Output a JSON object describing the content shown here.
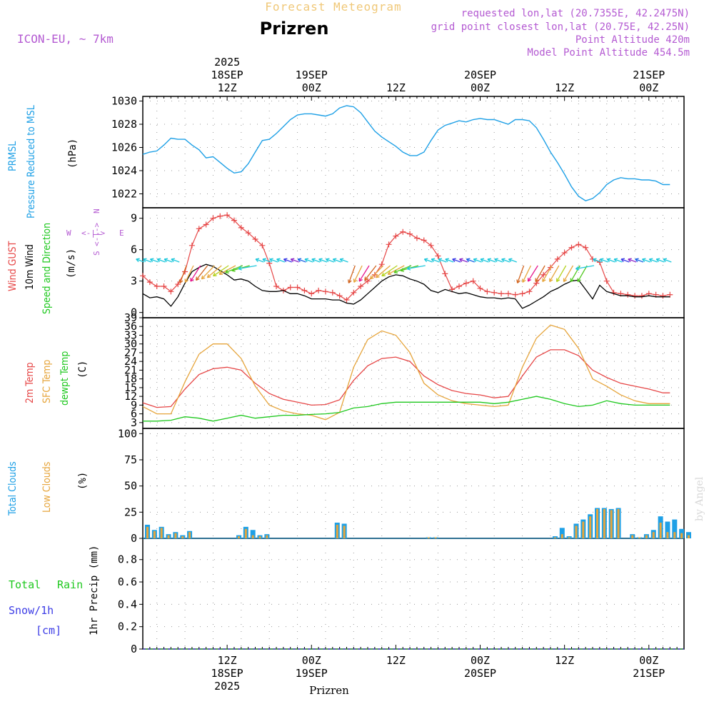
{
  "header": {
    "title": "Prizren",
    "subtitle": "Forecast Meteogram",
    "model": "ICON-EU, ~ 7km",
    "requested": "requested lon,lat (20.7355E, 42.2475N)",
    "grid_point": "grid point closest lon,lat (20.75E, 42.25N)",
    "point_altitude": "Point Altitude 420m",
    "model_altitude": "Model Point Altitude 454.5m",
    "footer_location": "Prizren",
    "watermark": "by Angel"
  },
  "colors": {
    "pressure": "#1ea0e6",
    "gust": "#e64646",
    "wind": "#000000",
    "temp2m": "#e64646",
    "sfc": "#e6a53c",
    "dewpt": "#1ec81e",
    "total_clouds": "#1ea0e6",
    "low_clouds": "#e6a53c",
    "rain": "#1ec81e",
    "snow": "#3c3ce6",
    "header_purple": "#b45ad2",
    "header_orange": "#f0c878"
  },
  "time_axis": {
    "top_ticks": [
      {
        "t": 12,
        "lines": [
          "2025",
          "18SEP",
          "12Z"
        ]
      },
      {
        "t": 24,
        "lines": [
          "19SEP",
          "00Z"
        ]
      },
      {
        "t": 36,
        "lines": [
          "12Z"
        ]
      },
      {
        "t": 48,
        "lines": [
          "20SEP",
          "00Z"
        ]
      },
      {
        "t": 60,
        "lines": [
          "12Z"
        ]
      },
      {
        "t": 72,
        "lines": [
          "21SEP",
          "00Z"
        ]
      }
    ],
    "bottom_ticks": [
      {
        "t": 12,
        "lines": [
          "12Z",
          "18SEP",
          "2025"
        ]
      },
      {
        "t": 24,
        "lines": [
          "00Z",
          "19SEP"
        ]
      },
      {
        "t": 36,
        "lines": [
          "12Z"
        ]
      },
      {
        "t": 48,
        "lines": [
          "00Z",
          "20SEP"
        ]
      },
      {
        "t": 60,
        "lines": [
          "12Z"
        ]
      },
      {
        "t": 72,
        "lines": [
          "00Z",
          "21SEP"
        ]
      }
    ]
  },
  "panel_labels": {
    "pressure": [
      "PRMSL",
      "Pressure Reduced to MSL",
      "(hPa)"
    ],
    "wind": [
      "Wind GUST",
      "10m Wind",
      "Speed and Direction",
      "(m/s)"
    ],
    "compass": {
      "n": "N",
      "s": "S",
      "w": "W",
      "e": "E"
    },
    "temp": [
      "2m Temp",
      "SFC Temp",
      "dewpt Temp",
      "(C)"
    ],
    "clouds": [
      "Total Clouds",
      "Low Clouds",
      "(%)"
    ],
    "precip": [
      "Total",
      "Rain",
      "Snow/1h",
      "[cm]",
      "1hr Precip (mm)"
    ]
  },
  "chart_data": [
    {
      "type": "line",
      "name": "pressure",
      "ylabel": "Pressure Reduced to MSL (hPa)",
      "ylim": [
        1020.8,
        1030.4
      ],
      "yticks": [
        1022,
        1024,
        1026,
        1028,
        1030
      ],
      "x": [
        0,
        1,
        2,
        3,
        4,
        5,
        6,
        7,
        8,
        9,
        10,
        11,
        12,
        13,
        14,
        15,
        16,
        17,
        18,
        19,
        20,
        21,
        22,
        23,
        24,
        25,
        26,
        27,
        28,
        29,
        30,
        31,
        32,
        33,
        34,
        35,
        36,
        37,
        38,
        39,
        40,
        41,
        42,
        43,
        44,
        45,
        46,
        47,
        48,
        49,
        50,
        51,
        52,
        53,
        54,
        55,
        56,
        57,
        58,
        59,
        60,
        61,
        62,
        63,
        64,
        65,
        66,
        67,
        68,
        69,
        70,
        71,
        72,
        73,
        74,
        75
      ],
      "values": [
        1025.4,
        1025.6,
        1025.7,
        1026.2,
        1026.8,
        1026.7,
        1026.7,
        1026.2,
        1025.8,
        1025.1,
        1025.2,
        1024.7,
        1024.2,
        1023.8,
        1023.9,
        1024.6,
        1025.6,
        1026.6,
        1026.7,
        1027.2,
        1027.8,
        1028.4,
        1028.8,
        1028.9,
        1028.9,
        1028.8,
        1028.7,
        1028.9,
        1029.4,
        1029.6,
        1029.5,
        1029.0,
        1028.2,
        1027.4,
        1026.9,
        1026.5,
        1026.1,
        1025.6,
        1025.3,
        1025.3,
        1025.6,
        1026.6,
        1027.5,
        1027.9,
        1028.1,
        1028.3,
        1028.2,
        1028.4,
        1028.5,
        1028.4,
        1028.4,
        1028.2,
        1028.0,
        1028.4,
        1028.4,
        1028.3,
        1027.7,
        1026.7,
        1025.6,
        1024.7,
        1023.7,
        1022.6,
        1021.8,
        1021.4,
        1021.6,
        1022.1,
        1022.8,
        1023.2,
        1023.4,
        1023.3,
        1023.3,
        1023.2,
        1023.2,
        1023.1,
        1022.8,
        1022.8
      ]
    },
    {
      "type": "line",
      "name": "wind",
      "ylabel": "(m/s)",
      "ylim": [
        -0.5,
        10
      ],
      "yticks": [
        0,
        3,
        6,
        9
      ],
      "x": [
        0,
        1,
        2,
        3,
        4,
        5,
        6,
        7,
        8,
        9,
        10,
        11,
        12,
        13,
        14,
        15,
        16,
        17,
        18,
        19,
        20,
        21,
        22,
        23,
        24,
        25,
        26,
        27,
        28,
        29,
        30,
        31,
        32,
        33,
        34,
        35,
        36,
        37,
        38,
        39,
        40,
        41,
        42,
        43,
        44,
        45,
        46,
        47,
        48,
        49,
        50,
        51,
        52,
        53,
        54,
        55,
        56,
        57,
        58,
        59,
        60,
        61,
        62,
        63,
        64,
        65,
        66,
        67,
        68,
        69,
        70,
        71,
        72,
        73,
        74,
        75
      ],
      "series": [
        {
          "name": "Wind GUST",
          "values": [
            3.5,
            2.9,
            2.5,
            2.5,
            2.0,
            2.7,
            3.9,
            6.4,
            8.0,
            8.4,
            9.0,
            9.2,
            9.3,
            8.8,
            8.1,
            7.6,
            7.0,
            6.4,
            4.7,
            2.5,
            2.1,
            2.4,
            2.4,
            2.1,
            1.8,
            2.1,
            2.0,
            1.9,
            1.6,
            1.2,
            1.9,
            2.5,
            3.0,
            3.6,
            4.6,
            6.5,
            7.3,
            7.7,
            7.5,
            7.1,
            6.9,
            6.4,
            5.4,
            3.7,
            2.2,
            2.5,
            2.8,
            3.0,
            2.3,
            2.0,
            1.9,
            1.8,
            1.8,
            1.7,
            1.8,
            2.0,
            2.8,
            3.6,
            4.3,
            5.1,
            5.7,
            6.2,
            6.5,
            6.2,
            5.1,
            4.8,
            3.0,
            1.9,
            1.8,
            1.7,
            1.6,
            1.6,
            1.8,
            1.7,
            1.6,
            1.7
          ]
        },
        {
          "name": "10m Wind",
          "values": [
            1.8,
            1.4,
            1.5,
            1.3,
            0.6,
            1.5,
            2.8,
            3.9,
            4.3,
            4.6,
            4.4,
            4.0,
            3.6,
            3.1,
            3.2,
            3.0,
            2.5,
            2.1,
            2.0,
            2.0,
            2.1,
            1.8,
            1.8,
            1.6,
            1.3,
            1.3,
            1.3,
            1.2,
            1.2,
            0.9,
            0.8,
            1.2,
            1.8,
            2.4,
            3.0,
            3.4,
            3.6,
            3.5,
            3.2,
            3.0,
            2.7,
            2.1,
            1.9,
            2.2,
            2.0,
            1.8,
            1.9,
            1.7,
            1.5,
            1.4,
            1.4,
            1.3,
            1.4,
            1.3,
            0.4,
            0.7,
            1.1,
            1.5,
            2.0,
            2.3,
            2.7,
            3.0,
            3.1,
            2.2,
            1.3,
            2.6,
            2.0,
            1.8,
            1.6,
            1.6,
            1.5,
            1.5,
            1.6,
            1.5,
            1.5,
            1.5
          ]
        }
      ]
    },
    {
      "type": "line",
      "name": "temperature",
      "ylabel": "(C)",
      "ylim": [
        1,
        39
      ],
      "yticks": [
        3,
        6,
        9,
        12,
        15,
        18,
        21,
        24,
        27,
        30,
        33,
        36,
        39
      ],
      "x": [
        0,
        2,
        4,
        6,
        8,
        10,
        12,
        14,
        16,
        18,
        20,
        22,
        24,
        26,
        28,
        30,
        32,
        34,
        36,
        38,
        40,
        42,
        44,
        46,
        48,
        50,
        52,
        54,
        56,
        58,
        60,
        62,
        64,
        66,
        68,
        70,
        72,
        74,
        75
      ],
      "series": [
        {
          "name": "2m Temp",
          "values": [
            9.8,
            8.2,
            8.5,
            14.5,
            19.5,
            21.5,
            22.0,
            21.0,
            16.5,
            13.0,
            11.0,
            10.0,
            9.0,
            9.2,
            10.8,
            17.5,
            22.5,
            25.0,
            25.5,
            24.0,
            19.0,
            16.0,
            14.0,
            13.0,
            12.5,
            11.5,
            12.0,
            19.0,
            25.5,
            28.0,
            28.0,
            26.0,
            21.0,
            18.5,
            16.5,
            15.5,
            14.5,
            13.2,
            13.2
          ]
        },
        {
          "name": "SFC Temp",
          "values": [
            8.5,
            6.0,
            6.0,
            17.0,
            26.5,
            30.0,
            30.0,
            25.0,
            15.5,
            9.0,
            7.0,
            6.0,
            5.5,
            4.0,
            6.5,
            22.0,
            31.5,
            34.5,
            33.0,
            27.0,
            16.5,
            12.5,
            10.5,
            9.5,
            9.0,
            8.5,
            9.0,
            22.0,
            32.0,
            36.5,
            35.0,
            28.5,
            18.0,
            15.5,
            12.5,
            10.5,
            9.5,
            9.5,
            9.5
          ]
        },
        {
          "name": "dewpt Temp",
          "values": [
            3.5,
            3.5,
            3.8,
            5.0,
            4.5,
            3.5,
            4.5,
            5.5,
            4.5,
            5.0,
            5.5,
            5.5,
            5.8,
            6.0,
            6.5,
            8.0,
            8.5,
            9.5,
            10.0,
            10.0,
            10.0,
            10.0,
            10.0,
            10.0,
            10.0,
            9.5,
            10.0,
            11.0,
            12.0,
            11.0,
            9.5,
            8.5,
            9.0,
            10.5,
            9.5,
            9.0,
            9.0,
            9.0,
            9.0
          ]
        }
      ]
    },
    {
      "type": "bar",
      "name": "clouds",
      "ylabel": "(%)",
      "ylim": [
        0,
        105
      ],
      "yticks": [
        0,
        25,
        50,
        75,
        100
      ],
      "series": [
        {
          "name": "Total Clouds",
          "x": [
            0,
            1,
            2,
            3,
            4,
            5,
            6,
            13,
            14,
            15,
            16,
            17,
            27,
            28,
            40,
            41,
            58,
            59,
            60,
            61,
            62,
            63,
            64,
            65,
            66,
            67,
            69,
            70,
            71,
            72,
            73,
            74,
            75,
            76,
            77
          ],
          "values": [
            13,
            8,
            11,
            4,
            6,
            3,
            7,
            3,
            11,
            8,
            3,
            4,
            15,
            14,
            1,
            1,
            2,
            10,
            2,
            14,
            18,
            23,
            29,
            29,
            28,
            29,
            4,
            1,
            4,
            8,
            21,
            16,
            18,
            9,
            6
          ]
        },
        {
          "name": "Low Clouds",
          "x": [
            0,
            1,
            2,
            3,
            4,
            5,
            6,
            13,
            14,
            15,
            16,
            17,
            27,
            28,
            40,
            41,
            58,
            59,
            60,
            61,
            62,
            63,
            64,
            65,
            66,
            67,
            69,
            70,
            71,
            72,
            73,
            74,
            75,
            76,
            77
          ],
          "values": [
            11,
            7,
            10,
            3,
            5,
            2,
            6,
            2,
            9,
            3,
            2,
            3,
            13,
            12,
            1,
            1,
            1,
            4,
            1,
            12,
            16,
            21,
            28,
            28,
            27,
            28,
            3,
            1,
            3,
            6,
            15,
            6,
            6,
            5,
            3
          ]
        }
      ]
    },
    {
      "type": "line",
      "name": "precip",
      "ylabel": "1hr Precip (mm)",
      "ylim": [
        0,
        0.99
      ],
      "yticks": [
        0,
        0.2,
        0.4,
        0.6,
        0.8
      ],
      "series": [
        {
          "name": "Total Rain",
          "values": [
            0,
            0,
            0,
            0,
            0,
            0,
            0,
            0,
            0,
            0
          ]
        },
        {
          "name": "Snow/1h",
          "values": [
            0,
            0,
            0,
            0,
            0,
            0,
            0,
            0,
            0,
            0
          ]
        }
      ]
    }
  ]
}
